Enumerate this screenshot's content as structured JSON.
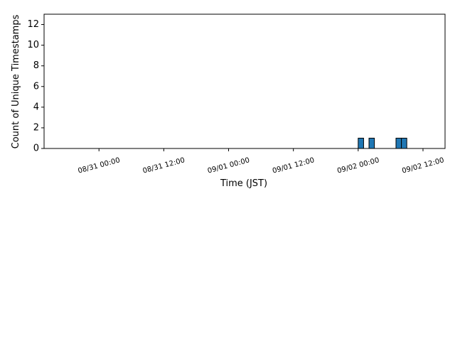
{
  "chart_data": {
    "type": "histogram",
    "xlabel": "Time (JST)",
    "ylabel": "Count of Unique Timestamps",
    "bins": [
      "08/30 17:00",
      "08/30 18:00",
      "08/30 19:00",
      "08/30 20:00",
      "08/30 21:00",
      "08/30 22:00",
      "08/30 23:00",
      "08/31 00:00",
      "08/31 01:00",
      "08/31 02:00",
      "08/31 03:00",
      "08/31 04:00",
      "08/31 05:00",
      "08/31 06:00",
      "08/31 07:00",
      "08/31 08:00",
      "08/31 09:00",
      "08/31 10:00",
      "08/31 11:00",
      "08/31 12:00",
      "08/31 13:00",
      "08/31 14:00",
      "08/31 15:00",
      "08/31 16:00",
      "08/31 17:00",
      "08/31 18:00",
      "08/31 19:00",
      "08/31 20:00",
      "08/31 21:00",
      "08/31 22:00",
      "08/31 23:00",
      "09/01 00:00",
      "09/01 01:00",
      "09/01 02:00",
      "09/01 03:00",
      "09/01 04:00",
      "09/01 05:00",
      "09/01 06:00",
      "09/01 07:00",
      "09/01 08:00",
      "09/01 09:00",
      "09/01 10:00",
      "09/01 11:00",
      "09/01 12:00",
      "09/01 13:00",
      "09/01 14:00",
      "09/01 15:00",
      "09/01 16:00",
      "09/01 17:00",
      "09/01 18:00",
      "09/01 19:00",
      "09/01 20:00",
      "09/01 21:00",
      "09/01 22:00",
      "09/01 23:00",
      "09/02 00:00",
      "09/02 01:00",
      "09/02 02:00",
      "09/02 03:00",
      "09/02 04:00",
      "09/02 05:00",
      "09/02 06:00",
      "09/02 07:00",
      "09/02 08:00",
      "09/02 09:00",
      "09/02 10:00",
      "09/02 11:00",
      "09/02 12:00",
      "09/02 13:00",
      "09/02 14:00"
    ],
    "values": [
      0,
      0,
      0,
      0,
      0,
      0,
      0,
      0,
      0,
      0,
      0,
      0,
      0,
      0,
      0,
      0,
      0,
      0,
      0,
      0,
      0,
      0,
      0,
      0,
      0,
      0,
      0,
      0,
      0,
      0,
      0,
      0,
      0,
      0,
      0,
      0,
      0,
      0,
      0,
      0,
      0,
      0,
      0,
      0,
      0,
      0,
      0,
      0,
      0,
      0,
      0,
      0,
      0,
      0,
      0,
      1,
      0,
      1,
      0,
      0,
      0,
      0,
      1,
      1,
      0,
      0,
      0,
      0,
      0
    ],
    "color": "#1f77b4",
    "edgecolor": "#000000",
    "xlim": [
      "08/30 13:50",
      "09/02 16:05"
    ],
    "xticks": [
      "08/31 00:00",
      "08/31 12:00",
      "09/01 00:00",
      "09/01 12:00",
      "09/02 00:00",
      "09/02 12:00"
    ],
    "ylim": [
      0,
      13
    ],
    "yticks": [
      0,
      2,
      4,
      6,
      8,
      10,
      12
    ]
  }
}
